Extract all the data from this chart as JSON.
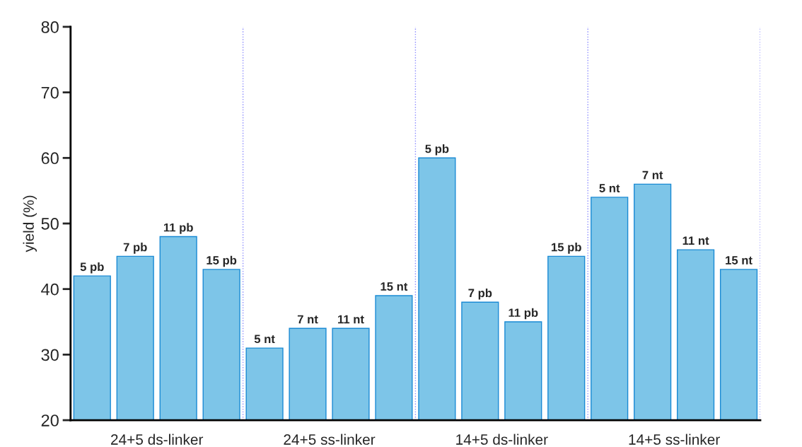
{
  "chart_data": {
    "type": "bar",
    "ylabel": "yield (%)",
    "categories": [
      "5 pb",
      "7 pb",
      "11 pb",
      "15 pb",
      "5 nt",
      "7 nt",
      "11 nt",
      "15 nt",
      "5 pb",
      "7 pb",
      "11 pb",
      "15 pb",
      "5 nt",
      "7 nt",
      "11 nt",
      "15 nt"
    ],
    "values": [
      42,
      45,
      48,
      43,
      31,
      34,
      34,
      39,
      60,
      38,
      35,
      45,
      54,
      56,
      46,
      43
    ],
    "annotations": [
      "24+5 ds-linker",
      "24+5 ss-linker",
      "14+5 ds-linker",
      "14+5 ss-linker"
    ],
    "color": "#7dc5e8",
    "ylim": [
      20,
      80
    ],
    "yticks": [
      20,
      30,
      40,
      50,
      60,
      70,
      80
    ],
    "grid": "x",
    "legend": false
  }
}
